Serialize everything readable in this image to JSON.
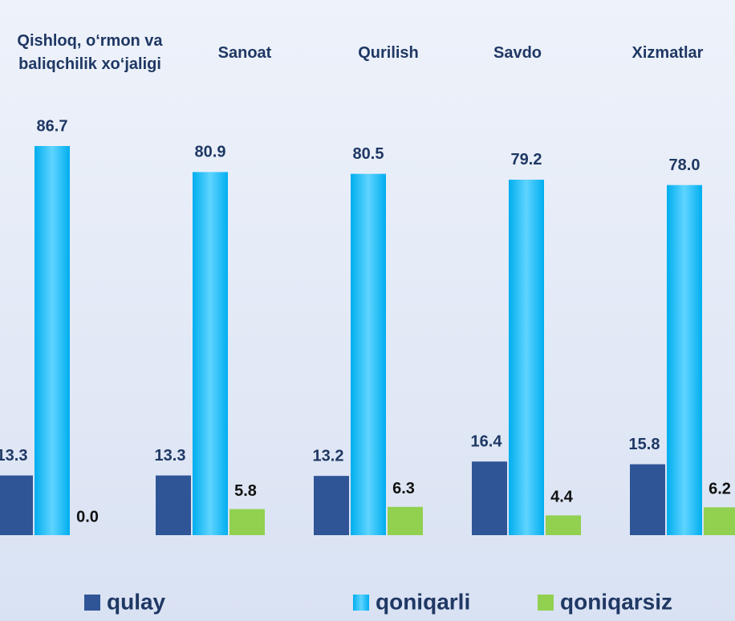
{
  "chart_data": {
    "type": "bar",
    "categories": [
      "Qishloq, o‘rmon va baliqchilik xo‘jaligi",
      "Sanoat",
      "Qurilish",
      "Savdo",
      "Xizmatlar"
    ],
    "series": [
      {
        "name": "qulay",
        "color": "#2f5597",
        "values": [
          13.3,
          13.3,
          13.2,
          16.4,
          15.8
        ]
      },
      {
        "name": "qoniqarli",
        "color": "#0fb4f0",
        "values": [
          86.7,
          80.9,
          80.5,
          79.2,
          78.0
        ],
        "value_labels": [
          "86.7",
          "80.9",
          "80.5",
          "79.2",
          "78.0"
        ]
      },
      {
        "name": "qoniqarsiz",
        "color": "#92d050",
        "values": [
          0.0,
          5.8,
          6.3,
          4.4,
          6.2
        ],
        "value_labels": [
          "0.0",
          "5.8",
          "6.3",
          "4.4",
          "6.2"
        ]
      }
    ],
    "legend": "bottom"
  }
}
